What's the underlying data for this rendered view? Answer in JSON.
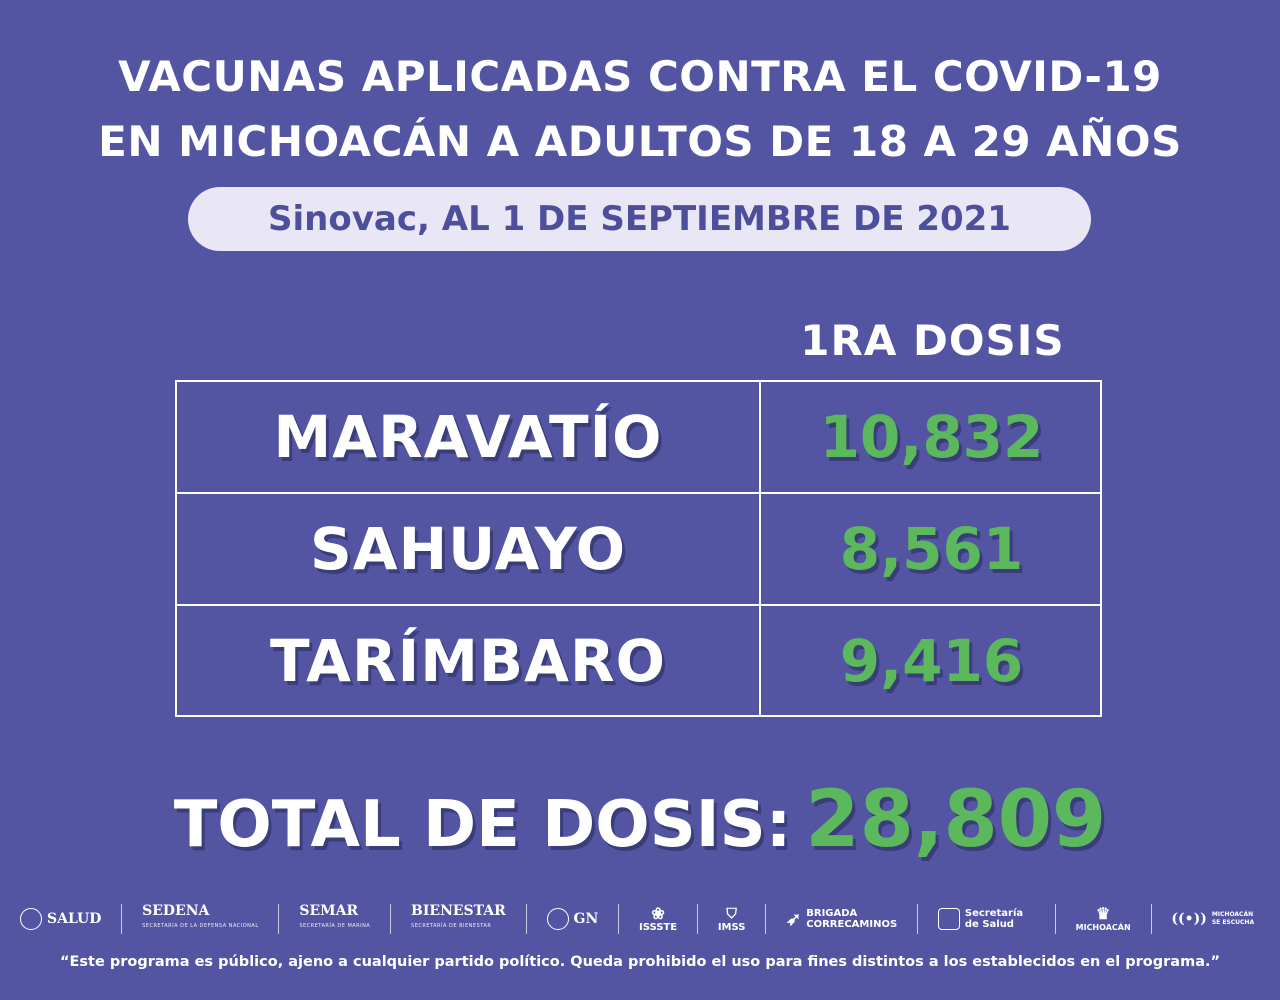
{
  "header": {
    "title_line1": "VACUNAS APLICADAS CONTRA EL COVID-19",
    "title_line2": "EN MICHOACÁN A ADULTOS DE 18 A 29 AÑOS",
    "subtitle": "Sinovac, AL 1 DE SEPTIEMBRE DE 2021"
  },
  "table": {
    "column_header": "1RA DOSIS",
    "rows": [
      {
        "municipio": "MARAVATÍO",
        "dosis": "10,832"
      },
      {
        "municipio": "SAHUAYO",
        "dosis": "8,561"
      },
      {
        "municipio": "TARÍMBARO",
        "dosis": "9,416"
      }
    ]
  },
  "total": {
    "label": "TOTAL DE DOSIS:",
    "value": "28,809"
  },
  "logos": {
    "salud": "SALUD",
    "sedena": "SEDENA",
    "sedena_sub": "SECRETARÍA DE LA DEFENSA NACIONAL",
    "semar": "SEMAR",
    "semar_sub": "SECRETARÍA DE MARINA",
    "bienestar": "BIENESTAR",
    "bienestar_sub": "SECRETARÍA DE BIENESTAR",
    "gn": "GN",
    "issste": "ISSSTE",
    "imss": "IMSS",
    "brigada": "BRIGADA",
    "correcaminos": "CORRECAMINOS",
    "secretaria_salud": "Secretaría de Salud",
    "michoacan": "MICHOACÁN",
    "michoacan_escucha": "MICHOACÁN SE ESCUCHA"
  },
  "footer": {
    "disclaimer": "“Este programa es público, ajeno a cualquier partido político. Queda prohibido el uso para fines distintos a los establecidos en el programa.”"
  },
  "colors": {
    "background": "#5355a3",
    "pill": "#e9e7f6",
    "accent_green": "#5cb85c"
  }
}
